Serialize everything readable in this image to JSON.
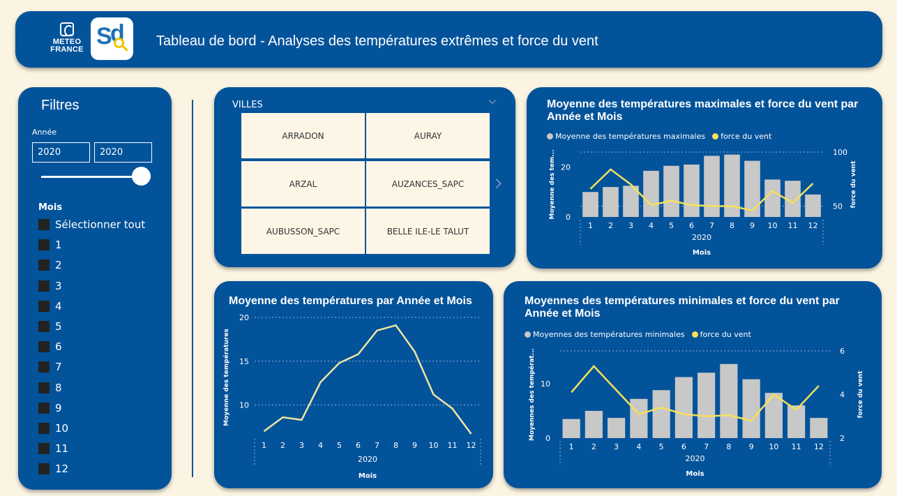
{
  "header": {
    "meteo_logo_line1": "METEO",
    "meteo_logo_line2": "FRANCE",
    "title": "Tableau de bord - Analyses des températures extrêmes et force du vent"
  },
  "filters": {
    "title": "Filtres",
    "year_label": "Année",
    "year_from": "2020",
    "year_to": "2020",
    "month_label": "Mois",
    "month_items": [
      "Sélectionner tout",
      "1",
      "2",
      "3",
      "4",
      "5",
      "6",
      "7",
      "8",
      "9",
      "10",
      "11",
      "12"
    ]
  },
  "villes": {
    "title": "VILLES",
    "tiles": [
      "ARRADON",
      "AURAY",
      "ARZAL",
      "AUZANCES_SAPC",
      "AUBUSSON_SAPC",
      "BELLE ILE-LE TALUT"
    ]
  },
  "colors": {
    "panel": "#03539a",
    "background": "#fbf4e2",
    "bar": "#c8c8c8",
    "wind_line": "#f5e15a",
    "avg_line": "#f0e6a0"
  },
  "icons": [
    "meteo-france-logo",
    "sd-logo",
    "chevron-down-icon",
    "chevron-right-icon",
    "checkbox-icon"
  ],
  "chart_data": [
    {
      "type": "bar",
      "title": "Moyenne des températures maximales et force du vent par Année et Mois",
      "legend": [
        "Moyenne des températures maximales",
        "force du vent"
      ],
      "categories": [
        "1",
        "2",
        "3",
        "4",
        "5",
        "6",
        "7",
        "8",
        "9",
        "10",
        "11",
        "12"
      ],
      "group_label": "2020",
      "xlabel": "Mois",
      "ylabel": "Moyenne des tem...",
      "y2label": "force du vent",
      "ylim": [
        0,
        26
      ],
      "y2lim": [
        40,
        100
      ],
      "yticks": [
        "0",
        "20"
      ],
      "y2ticks": [
        "50",
        "100"
      ],
      "series": [
        {
          "name": "Moyenne des températures maximales",
          "kind": "bar",
          "values": [
            10,
            12,
            12.5,
            18.5,
            20.5,
            21,
            24.5,
            25,
            22.5,
            15,
            14.5,
            9
          ]
        },
        {
          "name": "force du vent",
          "kind": "line",
          "axis": "right",
          "values": [
            66,
            84,
            70,
            51,
            55,
            51,
            50,
            50,
            46,
            64,
            53,
            71
          ]
        }
      ]
    },
    {
      "type": "line",
      "title": "Moyenne des températures par Année et Mois",
      "categories": [
        "1",
        "2",
        "3",
        "4",
        "5",
        "6",
        "7",
        "8",
        "9",
        "10",
        "11",
        "12"
      ],
      "group_label": "2020",
      "xlabel": "Mois",
      "ylabel": "Moyenne des températures",
      "ylim": [
        6.3,
        20
      ],
      "yticks": [
        "10",
        "15",
        "20"
      ],
      "series": [
        {
          "values": [
            7,
            8.6,
            8.3,
            12.6,
            14.8,
            15.8,
            18.5,
            19.1,
            16.1,
            11.2,
            9.6,
            6.7
          ]
        }
      ]
    },
    {
      "type": "bar",
      "title": "Moyennes des températures minimales et force du vent par Année et Mois",
      "legend": [
        "Moyennes des températures minimales",
        "force du vent"
      ],
      "categories": [
        "1",
        "2",
        "3",
        "4",
        "5",
        "6",
        "7",
        "8",
        "9",
        "10",
        "11",
        "12"
      ],
      "group_label": "2020",
      "xlabel": "Mois",
      "ylabel": "Moyennes des températ...",
      "y2label": "force du vent",
      "ylim": [
        0,
        16
      ],
      "y2lim": [
        2,
        6
      ],
      "yticks": [
        "0",
        "10"
      ],
      "y2ticks": [
        "2",
        "4",
        "6"
      ],
      "series": [
        {
          "name": "Moyennes des températures minimales",
          "kind": "bar",
          "values": [
            3.5,
            5,
            3.7,
            7.2,
            8.8,
            11.2,
            12,
            13.6,
            10.8,
            8.3,
            6,
            3.7
          ]
        },
        {
          "name": "force du vent",
          "kind": "line",
          "axis": "right",
          "values": [
            4.1,
            5.3,
            4.2,
            3.1,
            3.4,
            3.1,
            3.0,
            3.05,
            2.8,
            4.0,
            3.3,
            4.4
          ]
        }
      ]
    }
  ]
}
